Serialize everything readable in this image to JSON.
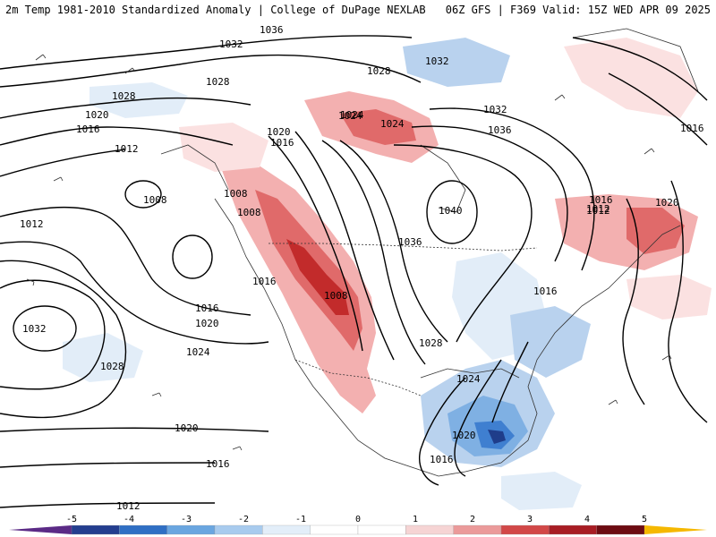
{
  "header": {
    "title_left": "2m Temp 1981-2010 Standardized Anomaly | College of DuPage NEXLAB",
    "title_right": "06Z GFS | F369 Valid: 15Z WED APR 09 2025"
  },
  "colors": {
    "pos1": "#fbe1e1",
    "pos2": "#f3b0b0",
    "pos3": "#e06a6a",
    "pos4": "#c22b2b",
    "pos5": "#7a0f14",
    "neg1": "#e2edf8",
    "neg2": "#b9d2ee",
    "neg3": "#7fb0e3",
    "neg4": "#3f7fd0",
    "neg5": "#1f3d8a"
  },
  "colorbar": {
    "labels": [
      "-5",
      "-4",
      "-3",
      "-2",
      "-1",
      "0",
      "1",
      "2",
      "3",
      "4",
      "5"
    ],
    "colors": [
      "#5b2a86",
      "#243e8f",
      "#2f6fc4",
      "#6aa6e0",
      "#a8cbee",
      "#e3eef9",
      "#ffffff",
      "#ffffff",
      "#f6d4d4",
      "#eb9a9a",
      "#d24848",
      "#a81d24",
      "#6d0c12",
      "#f5b800"
    ]
  },
  "isobars": {
    "labels": [
      "1036",
      "1032",
      "1028",
      "1020",
      "1016",
      "1012",
      "1008",
      "1008",
      "1008",
      "1028",
      "1024",
      "1024",
      "1020",
      "1016",
      "1036",
      "1032",
      "1012",
      "1032",
      "1028",
      "1020",
      "1016",
      "1016",
      "1024",
      "1008",
      "1012",
      "1036",
      "1040",
      "1016",
      "1012",
      "1020",
      "1016",
      "1016",
      "1028",
      "1024",
      "1020",
      "1016",
      "1032",
      "1028",
      "1024",
      "1020",
      "1016",
      "1012"
    ]
  }
}
